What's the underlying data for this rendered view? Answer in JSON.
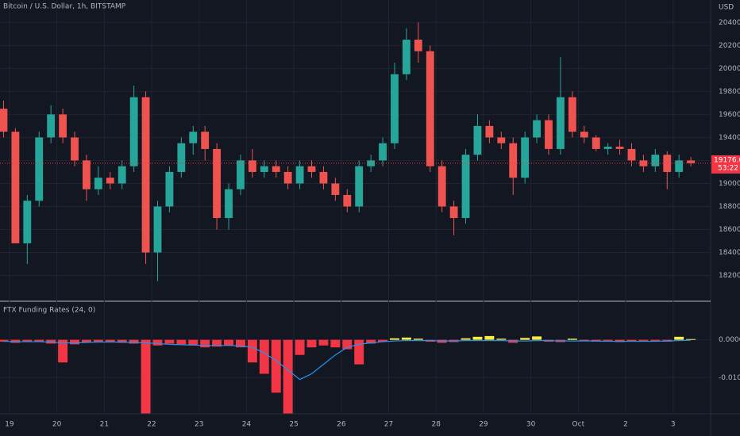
{
  "chart_data": [
    {
      "type": "candlestick",
      "title": "Bitcoin / U.S. Dollar, 1h, BITSTAMP",
      "axis_label": "USD",
      "open": [
        19650,
        19450,
        18480,
        18850,
        19400,
        19600,
        19400,
        19200,
        18950,
        19050,
        19000,
        19150,
        19750,
        18400,
        18800,
        19100,
        19350,
        19450,
        19300,
        18700,
        18950,
        19200,
        19100,
        19150,
        19100,
        19000,
        19150,
        19100,
        19000,
        18900,
        18800,
        19150,
        19200,
        19350,
        19950,
        20250,
        20150,
        19150,
        18800,
        18700,
        19250,
        19500,
        19400,
        19350,
        19050,
        19400,
        19550,
        19300,
        19750,
        19450,
        19400,
        19300,
        19320,
        19300,
        19200,
        19150,
        19250,
        19100,
        19200
      ],
      "high": [
        19720,
        19480,
        18900,
        19450,
        19680,
        19650,
        19450,
        19250,
        19150,
        19100,
        19200,
        19850,
        19800,
        18850,
        19150,
        19400,
        19500,
        19500,
        19350,
        19000,
        19250,
        19300,
        19200,
        19200,
        19150,
        19200,
        19200,
        19150,
        19050,
        18950,
        19200,
        19250,
        19400,
        20050,
        20350,
        20400,
        20200,
        19200,
        18850,
        19300,
        19600,
        19550,
        19450,
        19400,
        19450,
        19600,
        19600,
        20100,
        19800,
        19500,
        19420,
        19350,
        19380,
        19350,
        19250,
        19300,
        19280,
        19250,
        19230
      ],
      "low": [
        19400,
        18500,
        18300,
        18800,
        19350,
        19350,
        19150,
        18850,
        18900,
        18950,
        18950,
        19100,
        18300,
        18150,
        18750,
        19050,
        19250,
        19200,
        18600,
        18600,
        18900,
        19050,
        19050,
        19050,
        18950,
        18950,
        19050,
        18950,
        18850,
        18750,
        18750,
        19100,
        19150,
        19300,
        19900,
        20050,
        19100,
        18750,
        18550,
        18650,
        19200,
        19350,
        19300,
        18900,
        19000,
        19350,
        19250,
        19250,
        19400,
        19350,
        19280,
        19250,
        19250,
        19150,
        19100,
        19100,
        18950,
        19050,
        19150
      ],
      "close": [
        19450,
        18480,
        18850,
        19400,
        19600,
        19400,
        19200,
        18950,
        19050,
        19000,
        19150,
        19750,
        18400,
        18800,
        19100,
        19350,
        19450,
        19300,
        18700,
        18950,
        19200,
        19100,
        19150,
        19100,
        19000,
        19150,
        19100,
        19000,
        18900,
        18800,
        19150,
        19200,
        19350,
        19950,
        20250,
        20150,
        19150,
        18800,
        18700,
        19250,
        19500,
        19400,
        19350,
        19050,
        19400,
        19550,
        19300,
        19750,
        19450,
        19400,
        19300,
        19320,
        19300,
        19200,
        19150,
        19250,
        19100,
        19200,
        19176
      ],
      "up_color": "#26a69a",
      "down_color": "#ef5350",
      "ylim": [
        17990,
        20595
      ],
      "yticks": [
        {
          "value": 18200,
          "label": "18200.00"
        },
        {
          "value": 18400,
          "label": "18400.00"
        },
        {
          "value": 18600,
          "label": "18600.00"
        },
        {
          "value": 18800,
          "label": "18800.00"
        },
        {
          "value": 19000,
          "label": "19000.00"
        },
        {
          "value": 19200,
          "label": "19200.00"
        },
        {
          "value": 19400,
          "label": "19400.00"
        },
        {
          "value": 19600,
          "label": "19600.00"
        },
        {
          "value": 19800,
          "label": "19800.00"
        },
        {
          "value": 20000,
          "label": "20000.00"
        },
        {
          "value": 20200,
          "label": "20200.00"
        },
        {
          "value": 20400,
          "label": "20400.00"
        }
      ],
      "grid": true,
      "last_price": {
        "value": 19176,
        "label": "19176.00"
      },
      "countdown": "53:22",
      "last_price_color": "#f23645"
    },
    {
      "type": "bar",
      "title": "FTX Funding Rates (24, 0)",
      "categories": [
        null,
        "19",
        null,
        null,
        null,
        "20",
        null,
        null,
        null,
        "21",
        null,
        null,
        null,
        "22",
        null,
        null,
        null,
        "23",
        null,
        null,
        null,
        "24",
        null,
        null,
        null,
        "25",
        null,
        null,
        null,
        "26",
        null,
        null,
        null,
        "27",
        null,
        null,
        null,
        "28",
        null,
        null,
        null,
        "29",
        null,
        null,
        null,
        "30",
        null,
        null,
        null,
        "Oct",
        null,
        null,
        null,
        "2",
        null,
        null,
        null,
        "3",
        null
      ],
      "values": [
        -0.0005,
        -0.0008,
        -0.0006,
        -0.0005,
        -0.001,
        -0.006,
        -0.0012,
        -0.0008,
        -0.0006,
        -0.0005,
        -0.0008,
        -0.001,
        -0.0195,
        -0.0015,
        -0.001,
        -0.0012,
        -0.0015,
        -0.002,
        -0.0018,
        -0.0015,
        -0.002,
        -0.006,
        -0.009,
        -0.014,
        -0.0195,
        -0.004,
        -0.002,
        -0.0015,
        -0.002,
        -0.0025,
        -0.0065,
        -0.001,
        -0.0005,
        0.0004,
        0.0006,
        0.0003,
        -0.0005,
        -0.0008,
        -0.0006,
        0.0004,
        0.0008,
        0.001,
        0.0003,
        -0.0008,
        0.0005,
        0.0009,
        -0.0005,
        -0.0006,
        0.0003,
        -0.0003,
        -0.0005,
        -0.0004,
        -0.0006,
        -0.0005,
        -0.0004,
        -0.0003,
        -0.0005,
        0.0008,
        0.0002
      ],
      "positive_color": "#ffeb3b",
      "negative_color": "#f23645",
      "line": {
        "color": "#2196f3",
        "values": [
          -0.0004,
          -0.0005,
          -0.0005,
          -0.0005,
          -0.0006,
          -0.0008,
          -0.0008,
          -0.0007,
          -0.0006,
          -0.0006,
          -0.0006,
          -0.0007,
          -0.0008,
          -0.001,
          -0.0012,
          -0.0013,
          -0.0014,
          -0.0015,
          -0.0015,
          -0.0015,
          -0.0016,
          -0.002,
          -0.0035,
          -0.0055,
          -0.008,
          -0.0105,
          -0.009,
          -0.0065,
          -0.004,
          -0.002,
          -0.0012,
          -0.0008,
          -0.0005,
          -0.0003,
          -0.0002,
          -0.0002,
          -0.0002,
          -0.0003,
          -0.0003,
          -0.0002,
          -0.0002,
          -0.0002,
          -0.0002,
          -0.0003,
          -0.0003,
          -0.0002,
          -0.0002,
          -0.0003,
          -0.0003,
          -0.0003,
          -0.0003,
          -0.0004,
          -0.0004,
          -0.0004,
          -0.0004,
          -0.0004,
          -0.0003,
          -0.0002,
          -0.0001
        ]
      },
      "ylim": [
        -0.0196,
        0.0098
      ],
      "yticks": [
        {
          "value": 0,
          "label": "0.00000"
        },
        {
          "value": -0.01,
          "label": "-0.01000"
        }
      ],
      "grid": true
    }
  ]
}
